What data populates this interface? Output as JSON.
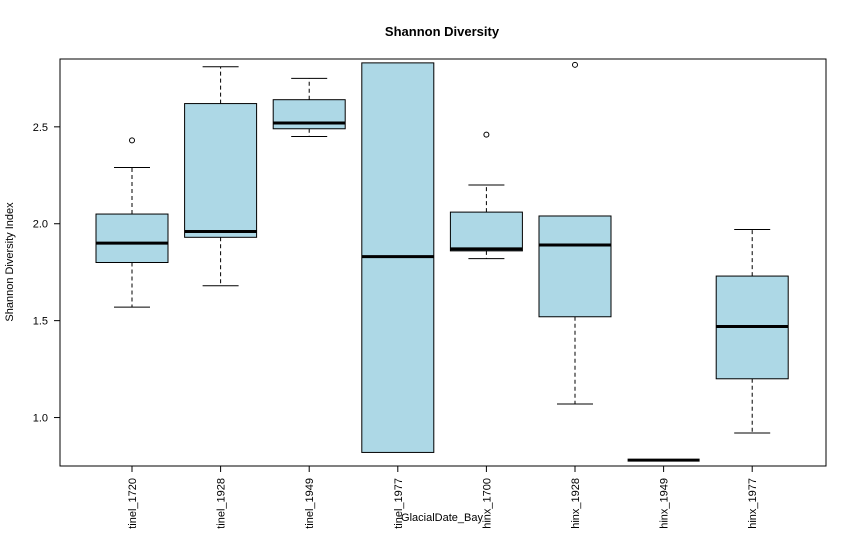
{
  "chart_data": {
    "type": "boxplot",
    "title": "Shannon Diversity",
    "xlabel": "GlacialDate_Bay",
    "ylabel": "Shannon Diversity Index",
    "ylim": [
      0.75,
      2.85
    ],
    "yticks": [
      1.0,
      1.5,
      2.0,
      2.5
    ],
    "ytick_labels": [
      "1.0",
      "1.5",
      "2.0",
      "2.5"
    ],
    "box_fill": "#ADD8E6",
    "grid": false,
    "legend": "none",
    "categories": [
      "tinel_1720",
      "tinel_1928",
      "tinel_1949",
      "tinel_1977",
      "hinx_1700",
      "hinx_1928",
      "hinx_1949",
      "hinx_1977"
    ],
    "boxes": [
      {
        "min": 1.57,
        "q1": 1.8,
        "median": 1.9,
        "q3": 2.05,
        "max": 2.29,
        "outliers": [
          2.43
        ]
      },
      {
        "min": 1.68,
        "q1": 1.93,
        "median": 1.96,
        "q3": 2.62,
        "max": 2.81,
        "outliers": []
      },
      {
        "min": 2.45,
        "q1": 2.49,
        "median": 2.52,
        "q3": 2.64,
        "max": 2.75,
        "outliers": []
      },
      {
        "min": 0.82,
        "q1": 0.82,
        "median": 1.83,
        "q3": 2.83,
        "max": 2.83,
        "outliers": []
      },
      {
        "min": 1.82,
        "q1": 1.86,
        "median": 1.87,
        "q3": 2.06,
        "max": 2.2,
        "outliers": [
          2.46
        ]
      },
      {
        "min": 1.07,
        "q1": 1.52,
        "median": 1.89,
        "q3": 2.04,
        "max": 2.04,
        "outliers": [
          2.82
        ]
      },
      {
        "min": 0.78,
        "q1": 0.78,
        "median": 0.78,
        "q3": 0.78,
        "max": 0.78,
        "outliers": []
      },
      {
        "min": 0.92,
        "q1": 1.2,
        "median": 1.47,
        "q3": 1.73,
        "max": 1.97,
        "outliers": []
      }
    ]
  }
}
